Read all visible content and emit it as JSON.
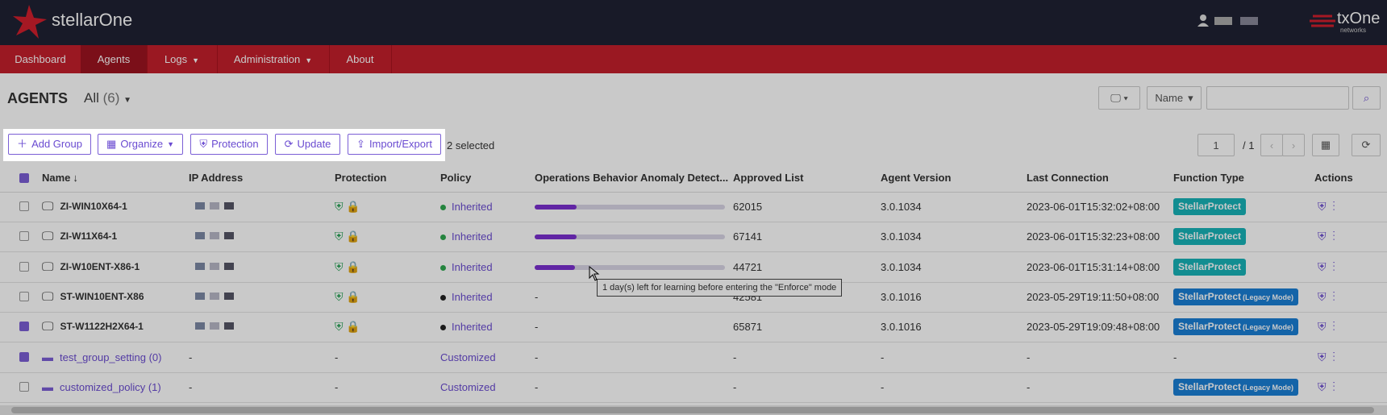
{
  "header": {
    "brand": "stellarOne",
    "company": "txOne",
    "company_sub": "networks"
  },
  "nav": [
    "Dashboard",
    "Agents",
    "Logs",
    "Administration",
    "About"
  ],
  "page": {
    "title": "AGENTS",
    "filter": "All",
    "count": "(6)",
    "search_field": "Name",
    "selected": "2 selected",
    "page": "1",
    "pages": "/ 1"
  },
  "toolbar": [
    "Add Group",
    "Organize",
    "Protection",
    "Update",
    "Import/Export"
  ],
  "table": {
    "columns": [
      "Name",
      "IP Address",
      "Protection",
      "Policy",
      "Operations Behavior Anomaly Detect...",
      "Approved List",
      "Agent Version",
      "Last Connection",
      "Function Type",
      "Actions"
    ],
    "rows": [
      {
        "kind": "agent",
        "checked": false,
        "name": "ZI-WIN10X64-1",
        "ip": "-",
        "policy": "Inherited",
        "status": "green",
        "learning": 22,
        "approved": "62015",
        "version": "3.0.1034",
        "last": "2023-06-01T15:32:02+08:00",
        "function": "StellarProtect",
        "mode": null
      },
      {
        "kind": "agent",
        "checked": false,
        "name": "ZI-W11X64-1",
        "ip": "-",
        "policy": "Inherited",
        "status": "green",
        "learning": 22,
        "approved": "67141",
        "version": "3.0.1034",
        "last": "2023-06-01T15:32:23+08:00",
        "function": "StellarProtect",
        "mode": null
      },
      {
        "kind": "agent",
        "checked": false,
        "name": "ZI-W10ENT-X86-1",
        "ip": "-",
        "policy": "Inherited",
        "status": "green",
        "learning": 21,
        "approved": "44721",
        "version": "3.0.1034",
        "last": "2023-06-01T15:31:14+08:00",
        "function": "StellarProtect",
        "mode": null
      },
      {
        "kind": "agent",
        "checked": false,
        "name": "ST-WIN10ENT-X86",
        "ip": "-",
        "policy": "Inherited",
        "status": "black",
        "learning": null,
        "obad": "-",
        "approved": "42581",
        "version": "3.0.1016",
        "last": "2023-05-29T19:11:50+08:00",
        "function": "StellarProtect",
        "mode": "(Legacy Mode)"
      },
      {
        "kind": "agent",
        "checked": true,
        "name": "ST-W1122H2X64-1",
        "ip": "-",
        "policy": "Inherited",
        "status": "black",
        "learning": null,
        "obad": "-",
        "approved": "65871",
        "version": "3.0.1016",
        "last": "2023-05-29T19:09:48+08:00",
        "function": "StellarProtect",
        "mode": "(Legacy Mode)"
      },
      {
        "kind": "group",
        "checked": true,
        "name": "test_group_setting (0)",
        "ip": "-",
        "prot": "-",
        "policy": "Customized",
        "obad": "-",
        "approved": "-",
        "version": "-",
        "last": "-",
        "function": "-",
        "mode": null
      },
      {
        "kind": "group",
        "checked": false,
        "name": "customized_policy (1)",
        "ip": "-",
        "prot": "-",
        "policy": "Customized",
        "obad": "-",
        "approved": "-",
        "version": "-",
        "last": "-",
        "function": "StellarProtect",
        "mode": "(Legacy Mode)"
      }
    ]
  },
  "tooltip": "1 day(s) left for learning before entering the \"Enforce\" mode"
}
